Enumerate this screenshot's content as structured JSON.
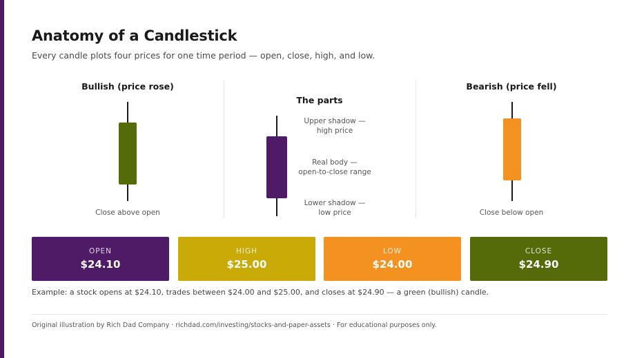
{
  "header": {
    "title": "Anatomy of a Candlestick",
    "subtitle": "Every candle plots four prices for one time period — open, close, high, and low."
  },
  "panels": {
    "bullish": {
      "heading": "Bullish (price rose)",
      "caption": "Close above open",
      "color": "#556b0a"
    },
    "parts": {
      "heading": "The parts",
      "color": "#4f1a66",
      "upper_shadow": {
        "line1": "Upper shadow —",
        "line2": "high price"
      },
      "real_body": {
        "line1": "Real body —",
        "line2": "open-to-close range"
      },
      "lower_shadow": {
        "line1": "Lower shadow —",
        "line2": "low price"
      }
    },
    "bearish": {
      "heading": "Bearish (price fell)",
      "caption": "Close below open",
      "color": "#f39220"
    }
  },
  "prices": [
    {
      "label": "OPEN",
      "value": "$24.10",
      "color": "#4f1a66"
    },
    {
      "label": "HIGH",
      "value": "$25.00",
      "color": "#c9aa06"
    },
    {
      "label": "LOW",
      "value": "$24.00",
      "color": "#f39220"
    },
    {
      "label": "CLOSE",
      "value": "$24.90",
      "color": "#556b0a"
    }
  ],
  "example": "Example: a stock opens at $24.10, trades between $24.00 and $25.00, and closes at $24.90 — a green (bullish) candle.",
  "footer": "Original illustration by Rich Dad Company · richdad.com/investing/stocks-and-paper-assets · For educational purposes only.",
  "colors": {
    "accent": "#4f1a66",
    "bullish": "#556b0a",
    "bearish": "#f39220",
    "high": "#c9aa06"
  }
}
